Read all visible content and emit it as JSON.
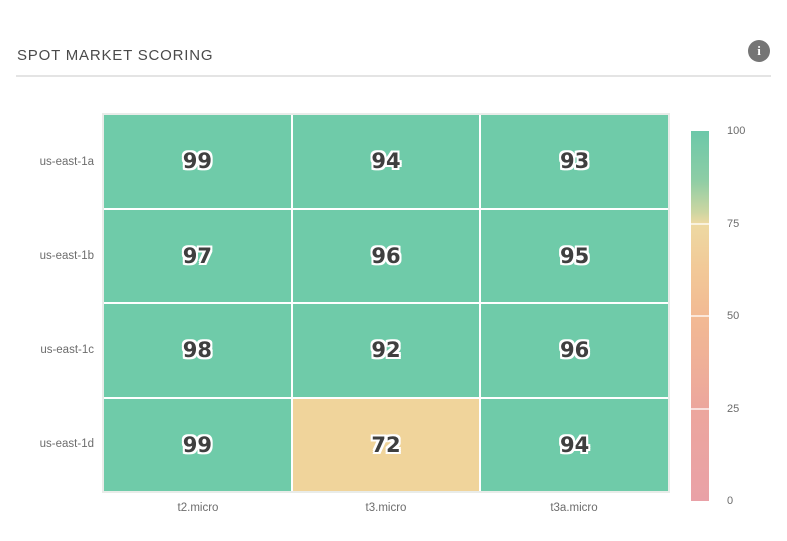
{
  "header": {
    "title": "SPOT MARKET SCORING",
    "info_icon": "i"
  },
  "chart_data": {
    "type": "heatmap",
    "title": "SPOT MARKET SCORING",
    "x_categories": [
      "t2.micro",
      "t3.micro",
      "t3a.micro"
    ],
    "y_categories": [
      "us-east-1a",
      "us-east-1b",
      "us-east-1c",
      "us-east-1d"
    ],
    "rows": [
      {
        "label": "us-east-1a",
        "values": [
          99,
          94,
          93
        ]
      },
      {
        "label": "us-east-1b",
        "values": [
          97,
          96,
          95
        ]
      },
      {
        "label": "us-east-1c",
        "values": [
          98,
          92,
          96
        ]
      },
      {
        "label": "us-east-1d",
        "values": [
          99,
          72,
          94
        ]
      }
    ],
    "cell_colors": [
      [
        "#6fcba9",
        "#6fcba9",
        "#6fcba9"
      ],
      [
        "#6fcba9",
        "#6fcba9",
        "#6fcba9"
      ],
      [
        "#6fcba9",
        "#6fcba9",
        "#6fcba9"
      ],
      [
        "#6fcba9",
        "#f0d49b",
        "#6fcba9"
      ]
    ],
    "colorbar": {
      "range": [
        0,
        100
      ],
      "ticks": [
        100,
        75,
        50,
        25,
        0
      ],
      "gradient_stops": [
        {
          "pos": 0.0,
          "color": "#6cc8a9"
        },
        {
          "pos": 0.13,
          "color": "#8ccda5"
        },
        {
          "pos": 0.22,
          "color": "#cdd6a2"
        },
        {
          "pos": 0.25,
          "color": "#edd9a2"
        },
        {
          "pos": 0.38,
          "color": "#f2c897"
        },
        {
          "pos": 0.5,
          "color": "#f2ba93"
        },
        {
          "pos": 0.75,
          "color": "#eca69d"
        },
        {
          "pos": 1.0,
          "color": "#e9a1a7"
        }
      ]
    }
  },
  "colors": {
    "value_text": "#3f3f3f",
    "axis_label_text": "#6d6d6d",
    "title_text": "#4a4a4a",
    "divider": "#e4e4e4",
    "info_icon_bg": "#757575",
    "cell_green": "#6fcba9",
    "cell_tan": "#f0d49b"
  }
}
